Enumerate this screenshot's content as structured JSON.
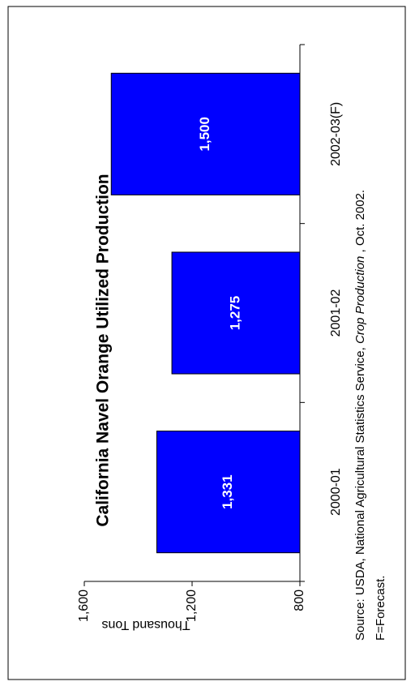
{
  "chart_data": {
    "type": "bar",
    "title": "California Navel Orange Utilized Production",
    "y_label": "Thousand Tons",
    "categories": [
      "2000-01",
      "2001-02",
      "2002-03(F)"
    ],
    "values": [
      1331,
      1275,
      1500
    ],
    "value_labels": [
      "1,331",
      "1,275",
      "1,500"
    ],
    "color": "#0000ff",
    "ylim": [
      800,
      1600
    ],
    "yticks": [
      {
        "value": 800,
        "label": "800"
      },
      {
        "value": 1200,
        "label": "1,200"
      },
      {
        "value": 1600,
        "label": "1,600"
      }
    ],
    "grid": false,
    "source": [
      "Source:  USDA, National Agricultural Statistics Service, ",
      "Crop Production",
      " , Oct. 2002."
    ],
    "note": "F=Forecast."
  }
}
